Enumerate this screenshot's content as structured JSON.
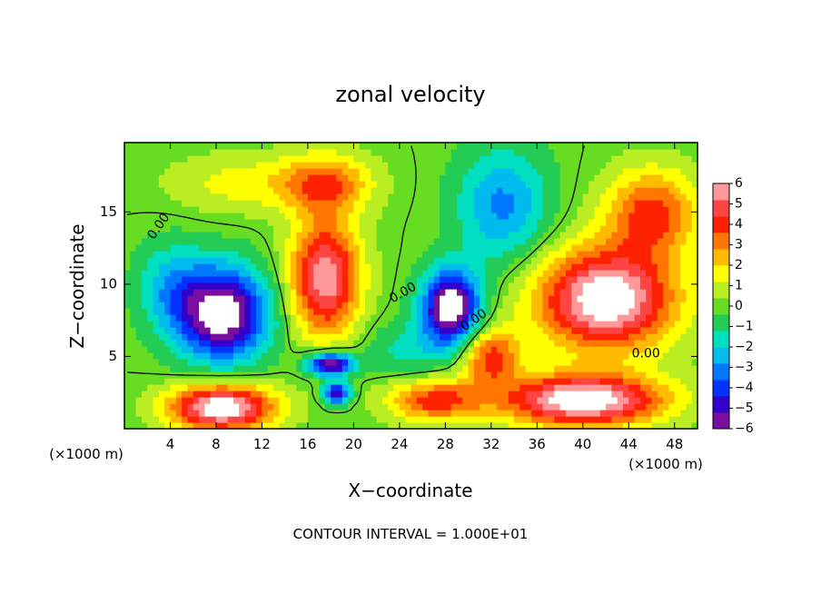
{
  "chart_data": {
    "type": "heatmap",
    "title": "zonal velocity",
    "xlabel": "X−coordinate",
    "ylabel": "Z−coordinate",
    "x_unit_left": "(×1000 m)",
    "x_unit_right": "(×1000 m)",
    "footer": "CONTOUR INTERVAL = 1.000E+01",
    "xlim": [
      0,
      50
    ],
    "ylim": [
      0,
      19.8
    ],
    "x_ticks": [
      4,
      8,
      12,
      16,
      20,
      24,
      28,
      32,
      36,
      40,
      44,
      48
    ],
    "y_ticks": [
      5,
      10,
      15
    ],
    "colorbar": {
      "min": -6,
      "max": 6,
      "ticks": [
        6,
        5,
        4,
        3,
        2,
        1,
        0,
        -1,
        -2,
        -3,
        -4,
        -5,
        -6
      ],
      "tick_labels": [
        "6",
        "5",
        "4",
        "3",
        "2",
        "1",
        "0",
        "−1",
        "−2",
        "−3",
        "−4",
        "−5",
        "−6"
      ],
      "saturated_color": "#ffffff",
      "colors": [
        "#7a0f9e",
        "#3300cc",
        "#0033ff",
        "#0077ff",
        "#00bbee",
        "#00e0c0",
        "#22cc55",
        "#66dd22",
        "#bbee22",
        "#ffff00",
        "#ffbb00",
        "#ff7700",
        "#ff2200",
        "#ff4444",
        "#ff9999"
      ]
    },
    "contour_labels": [
      {
        "text": "0.00",
        "x": 3,
        "y": 14,
        "angle": -55
      },
      {
        "text": "0.00",
        "x": 24.3,
        "y": 9.4,
        "angle": -30
      },
      {
        "text": "0.00",
        "x": 30.5,
        "y": 7.5,
        "angle": -35
      },
      {
        "text": "0.00",
        "x": 45.5,
        "y": 5.2,
        "angle": 0
      }
    ],
    "field_features": [
      {
        "x": 17.5,
        "y": 10.5,
        "value": 6,
        "sx": 3.0,
        "sy": 4.0
      },
      {
        "x": 17.5,
        "y": 17.0,
        "value": 3.5,
        "sx": 4.0,
        "sy": 2.0
      },
      {
        "x": 8.5,
        "y": 8.0,
        "value": -7,
        "sx": 4.0,
        "sy": 3.2
      },
      {
        "x": 28.5,
        "y": 8.5,
        "value": -7,
        "sx": 2.5,
        "sy": 2.5
      },
      {
        "x": 18,
        "y": 4.5,
        "value": -6.5,
        "sx": 2.0,
        "sy": 0.8
      },
      {
        "x": 18.5,
        "y": 2.5,
        "value": -5.5,
        "sx": 1.2,
        "sy": 0.7
      },
      {
        "x": 42,
        "y": 9.0,
        "value": 7,
        "sx": 6.0,
        "sy": 3.5
      },
      {
        "x": 46,
        "y": 15.0,
        "value": 4,
        "sx": 4.0,
        "sy": 3.0
      },
      {
        "x": 40,
        "y": 2.0,
        "value": 7,
        "sx": 7.0,
        "sy": 1.8
      },
      {
        "x": 8.5,
        "y": 1.5,
        "value": 7,
        "sx": 4.5,
        "sy": 1.6
      },
      {
        "x": 32,
        "y": 5.0,
        "value": 4,
        "sx": 2.5,
        "sy": 2.0
      },
      {
        "x": 27,
        "y": 2.0,
        "value": 4,
        "sx": 4.0,
        "sy": 1.5
      },
      {
        "x": 33,
        "y": 15.5,
        "value": -3,
        "sx": 4.0,
        "sy": 4.0
      },
      {
        "x": 4,
        "y": 10.0,
        "value": -2,
        "sx": 3.0,
        "sy": 3.0
      },
      {
        "x": 10,
        "y": 17.0,
        "value": 1.5,
        "sx": 6.0,
        "sy": 2.0
      },
      {
        "x": 25,
        "y": 5.5,
        "value": -1.5,
        "sx": 4.0,
        "sy": 2.0
      }
    ]
  }
}
